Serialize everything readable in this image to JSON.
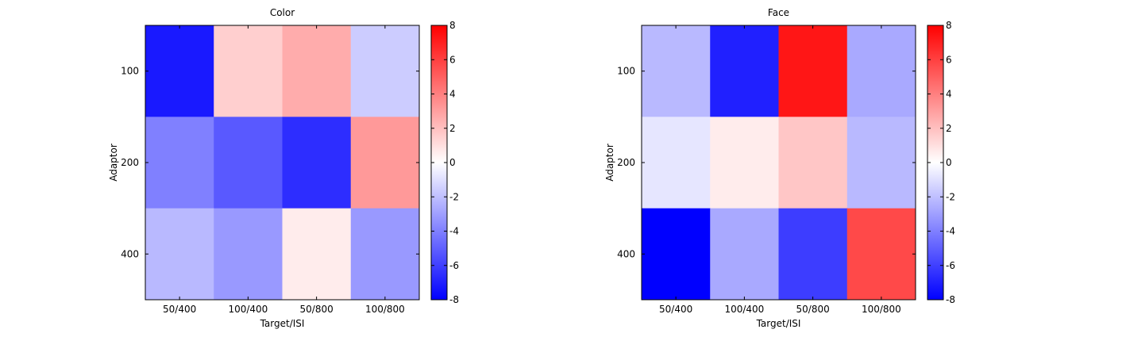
{
  "chart_data": [
    {
      "type": "heatmap",
      "title": "Color",
      "xlabel": "Target/ISI",
      "ylabel": "Adaptor",
      "x_categories": [
        "50/400",
        "100/400",
        "50/800",
        "100/800"
      ],
      "y_categories": [
        "100",
        "200",
        "400"
      ],
      "values": [
        [
          -7.2,
          1.5,
          2.6,
          -1.6
        ],
        [
          -4.0,
          -5.2,
          -6.6,
          3.2
        ],
        [
          -2.2,
          -3.2,
          0.6,
          -3.2
        ]
      ],
      "colorbar": {
        "min": -8,
        "max": 8,
        "ticks": [
          -8,
          -6,
          -4,
          -2,
          0,
          2,
          4,
          6,
          8
        ],
        "colormap": "blue-white-red"
      },
      "colors": {
        "low": "#0000ff",
        "mid": "#ffffff",
        "high": "#ff0000"
      }
    },
    {
      "type": "heatmap",
      "title": "Face",
      "xlabel": "Target/ISI",
      "ylabel": "Adaptor",
      "x_categories": [
        "50/400",
        "100/400",
        "50/800",
        "100/800"
      ],
      "y_categories": [
        "100",
        "200",
        "400"
      ],
      "values": [
        [
          -2.2,
          -7.0,
          7.3,
          -2.7
        ],
        [
          -0.8,
          0.6,
          1.8,
          -2.2
        ],
        [
          -8.0,
          -2.7,
          -6.1,
          5.7
        ]
      ],
      "colorbar": {
        "min": -8,
        "max": 8,
        "ticks": [
          -8,
          -6,
          -4,
          -2,
          0,
          2,
          4,
          6,
          8
        ],
        "colormap": "blue-white-red"
      },
      "colors": {
        "low": "#0000ff",
        "mid": "#ffffff",
        "high": "#ff0000"
      }
    }
  ]
}
